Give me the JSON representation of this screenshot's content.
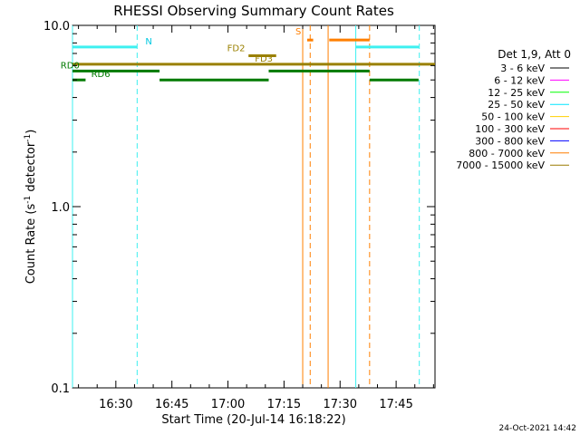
{
  "chart_data": {
    "type": "line",
    "title": "RHESSI Observing Summary Count Rates",
    "xlabel": "Start Time (20-Jul-14 16:18:22)",
    "ylabel_main": "Count Rate (s",
    "ylabel_sup1": "-1",
    "ylabel_mid": " detector",
    "ylabel_sup2": "-1",
    "ylabel_end": ")",
    "x_unit": "minutes after 16:18:22",
    "xlim": [
      0,
      97
    ],
    "ylim": [
      0.1,
      10.0
    ],
    "y_scale": "log",
    "grid": false,
    "x_ticks": [
      {
        "value": 11.6,
        "label": "16:30"
      },
      {
        "value": 26.6,
        "label": "16:45"
      },
      {
        "value": 41.6,
        "label": "17:00"
      },
      {
        "value": 56.6,
        "label": "17:15"
      },
      {
        "value": 71.6,
        "label": "17:30"
      },
      {
        "value": 86.6,
        "label": "17:45"
      }
    ],
    "y_ticks": [
      {
        "value": 10.0,
        "label": "10.0"
      },
      {
        "value": 1.0,
        "label": "1.0"
      },
      {
        "value": 0.1,
        "label": "0.1"
      }
    ],
    "legend": {
      "placement": "right",
      "header": "Det 1,9, Att 0",
      "entries": [
        {
          "label": "3 - 6 keV",
          "color": "#000000"
        },
        {
          "label": "6 - 12 keV",
          "color": "#ff00ff"
        },
        {
          "label": "12 - 25 keV",
          "color": "#00ff00"
        },
        {
          "label": "25 - 50 keV",
          "color": "#00e5ff"
        },
        {
          "label": "50 - 100 keV",
          "color": "#ffd000"
        },
        {
          "label": "100 - 300 keV",
          "color": "#ff0000"
        },
        {
          "label": "300 - 800 keV",
          "color": "#0000ff"
        },
        {
          "label": "800 - 7000 keV",
          "color": "#ff7f00"
        },
        {
          "label": "7000 - 15000 keV",
          "color": "#9a7a00"
        }
      ]
    },
    "segments": [
      {
        "name": "night",
        "color": "#3ef0f0",
        "y": 7.6,
        "x0": 0.0,
        "x1": 17.3
      },
      {
        "name": "night",
        "color": "#3ef0f0",
        "y": 7.6,
        "x0": 75.8,
        "x1": 92.7
      },
      {
        "name": "saa",
        "color": "#ff7f00",
        "y": 8.3,
        "x0": 62.8,
        "x1": 64.4
      },
      {
        "name": "saa",
        "color": "#ff7f00",
        "y": 8.3,
        "x0": 68.7,
        "x1": 79.5
      },
      {
        "name": "fd",
        "color": "#9a8000",
        "y": 6.8,
        "x0": 47.1,
        "x1": 54.5
      },
      {
        "name": "fd",
        "color": "#9a8000",
        "y": 6.1,
        "x0": 0.0,
        "x1": 97.0
      },
      {
        "name": "rd",
        "color": "#007a00",
        "y": 5.6,
        "x0": 0.0,
        "x1": 23.3
      },
      {
        "name": "rd",
        "color": "#007a00",
        "y": 5.6,
        "x0": 52.5,
        "x1": 79.5
      },
      {
        "name": "rd",
        "color": "#007a00",
        "y": 5.0,
        "x0": 0.0,
        "x1": 3.5
      },
      {
        "name": "rd",
        "color": "#007a00",
        "y": 5.0,
        "x0": 23.3,
        "x1": 52.5
      },
      {
        "name": "rd",
        "color": "#007a00",
        "y": 5.0,
        "x0": 79.5,
        "x1": 92.6
      }
    ],
    "vlines": [
      {
        "x": 0.0,
        "color": "#3ef0f0",
        "style": "solid"
      },
      {
        "x": 17.3,
        "color": "#3ef0f0",
        "style": "dashed"
      },
      {
        "x": 61.6,
        "color": "#ff7f00",
        "style": "solid"
      },
      {
        "x": 63.6,
        "color": "#ff7f00",
        "style": "dashed"
      },
      {
        "x": 68.4,
        "color": "#ff7f00",
        "style": "solid"
      },
      {
        "x": 75.8,
        "color": "#3ef0f0",
        "style": "solid"
      },
      {
        "x": 79.5,
        "color": "#ff7f00",
        "style": "dashed"
      },
      {
        "x": 92.8,
        "color": "#3ef0f0",
        "style": "dashed"
      }
    ],
    "annotations": [
      {
        "text": "N",
        "x": 19.5,
        "y": 7.6,
        "color": "#00c8e0",
        "anchor": "start"
      },
      {
        "text": "S",
        "x": 61.2,
        "y": 8.6,
        "color": "#ff7f00",
        "anchor": "end"
      },
      {
        "text": "FD2",
        "x": 46.2,
        "y": 6.95,
        "color": "#9a8000",
        "anchor": "end"
      },
      {
        "text": "FD3",
        "x": 48.8,
        "y": 6.1,
        "color": "#9a8000",
        "anchor": "start"
      },
      {
        "text": "RD0",
        "x": -3.2,
        "y": 5.6,
        "color": "#007a00",
        "anchor": "start"
      },
      {
        "text": "RD6",
        "x": 5.0,
        "y": 5.0,
        "color": "#007a00",
        "anchor": "start"
      }
    ]
  },
  "footer": {
    "date": "24-Oct-2021 14:42"
  }
}
